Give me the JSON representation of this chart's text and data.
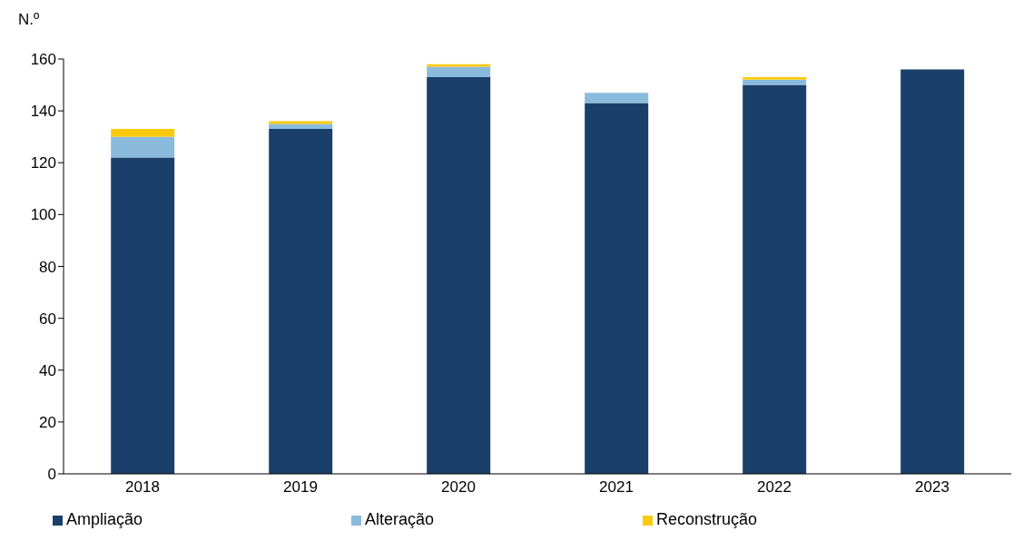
{
  "chart_data": {
    "type": "bar",
    "stacked": true,
    "ylabel": "N.º",
    "categories": [
      "2018",
      "2019",
      "2020",
      "2021",
      "2022",
      "2023"
    ],
    "series": [
      {
        "name": "Ampliação",
        "color": "#193f6a",
        "values": [
          122,
          133,
          153,
          143,
          150,
          156
        ]
      },
      {
        "name": "Alteração",
        "color": "#8abbdc",
        "values": [
          8,
          2,
          4,
          4,
          2,
          0
        ]
      },
      {
        "name": "Reconstrução",
        "color": "#fcca0a",
        "values": [
          3,
          1,
          1,
          0,
          1,
          0
        ]
      }
    ],
    "ylim": [
      0,
      160
    ],
    "yticks": [
      0,
      20,
      40,
      60,
      80,
      100,
      120,
      140,
      160
    ],
    "grid": false,
    "legend": "bottom"
  }
}
